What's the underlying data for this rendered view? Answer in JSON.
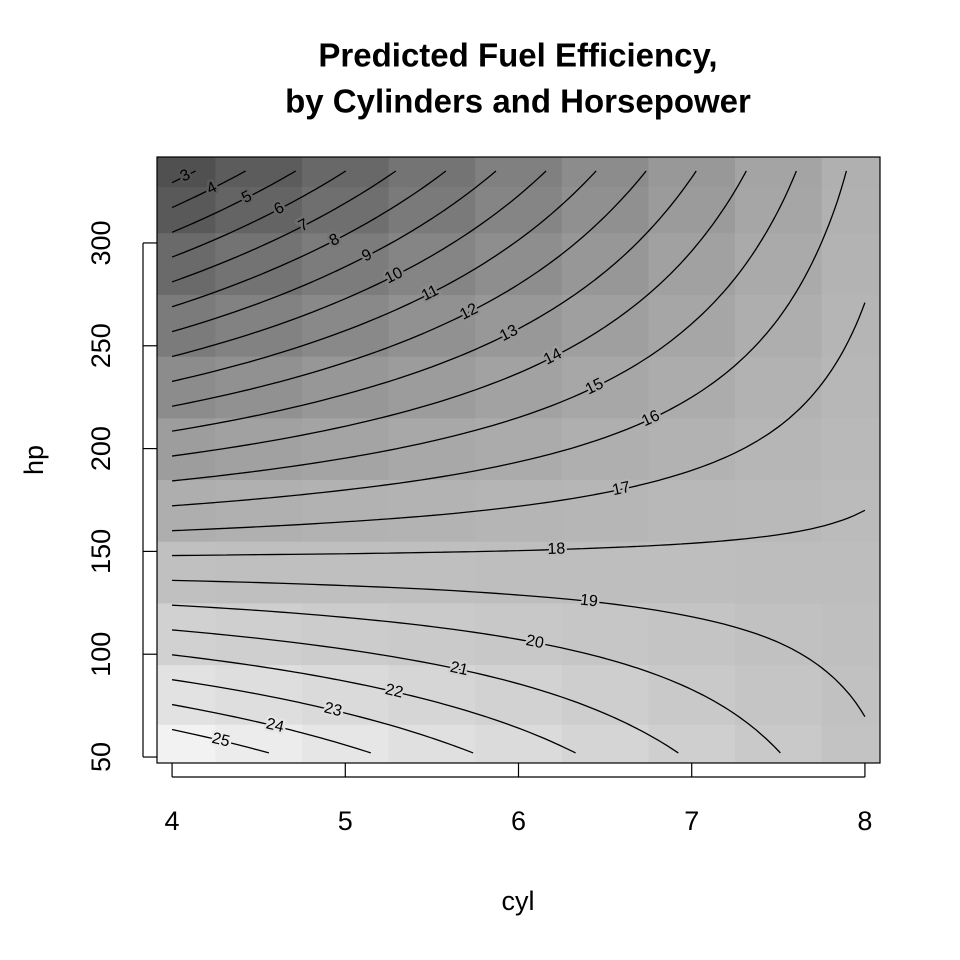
{
  "chart_data": {
    "type": "contour",
    "title": [
      "Predicted Fuel Efficiency,",
      "by Cylinders and Horsepower"
    ],
    "x_label": "cyl",
    "y_label": "hp",
    "x": [
      4,
      4.5,
      5,
      5.5,
      6,
      6.5,
      7,
      7.5,
      8
    ],
    "y": [
      52,
      80,
      110,
      140,
      170,
      200,
      230,
      260,
      290,
      320,
      335
    ],
    "z": [
      [
        25.94,
        25.1,
        24.25,
        23.4,
        22.56,
        21.71,
        20.87,
        20.02,
        19.17
      ],
      [
        23.63,
        23.04,
        22.44,
        21.85,
        21.26,
        20.67,
        20.08,
        19.49,
        18.9
      ],
      [
        21.15,
        20.83,
        20.51,
        20.19,
        19.87,
        19.55,
        19.23,
        18.92,
        18.6
      ],
      [
        18.66,
        18.62,
        18.57,
        18.53,
        18.48,
        18.44,
        18.39,
        18.35,
        18.3
      ],
      [
        16.18,
        16.41,
        16.64,
        16.86,
        17.09,
        17.32,
        17.55,
        17.77,
        18.0
      ],
      [
        13.7,
        14.2,
        14.7,
        15.2,
        15.7,
        16.2,
        16.7,
        17.2,
        17.7
      ],
      [
        11.22,
        11.99,
        12.77,
        13.54,
        14.31,
        15.09,
        15.86,
        16.63,
        17.41
      ],
      [
        8.74,
        9.78,
        10.83,
        11.88,
        12.92,
        13.97,
        15.02,
        16.06,
        17.11
      ],
      [
        6.26,
        7.58,
        8.9,
        10.21,
        11.53,
        12.85,
        14.17,
        15.49,
        16.81
      ],
      [
        3.77,
        5.37,
        6.96,
        8.55,
        10.14,
        11.74,
        13.33,
        14.92,
        16.51
      ],
      [
        2.53,
        4.26,
        5.99,
        7.72,
        9.45,
        11.18,
        12.91,
        14.64,
        16.37
      ]
    ],
    "levels": [
      3,
      4,
      5,
      6,
      7,
      8,
      9,
      10,
      11,
      12,
      13,
      14,
      15,
      16,
      17,
      18,
      19,
      20,
      21,
      22,
      23,
      24,
      25
    ],
    "xlim": [
      3.913,
      8.087
    ],
    "ylim": [
      47.1,
      341.8
    ],
    "xticks": [
      4,
      5,
      6,
      7,
      8
    ],
    "yticks": [
      50,
      100,
      150,
      200,
      250,
      300
    ],
    "colors": {
      "low": "#505050",
      "high": "#f2f2f2",
      "line": "#000000"
    }
  }
}
